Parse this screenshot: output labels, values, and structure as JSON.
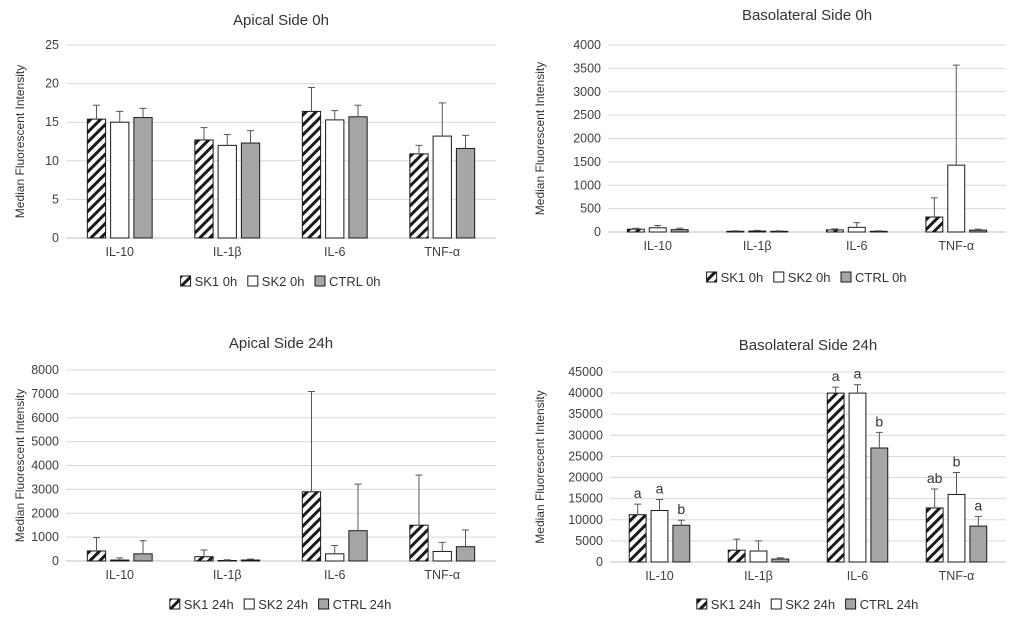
{
  "chart_data": [
    {
      "type": "bar",
      "title": "Apical Side 0h",
      "xlabel": "",
      "ylabel": "Median Fluorescent Intensity",
      "ylim": [
        0,
        25
      ],
      "yticks": [
        0,
        5,
        10,
        15,
        20,
        25
      ],
      "categories": [
        "IL-10",
        "IL-1β",
        "IL-6",
        "TNF-α"
      ],
      "series": [
        {
          "name": "SK1 0h",
          "style": "hatch",
          "values": [
            15.4,
            12.7,
            16.4,
            10.9
          ],
          "errors": [
            1.8,
            1.6,
            3.1,
            1.1
          ]
        },
        {
          "name": "SK2 0h",
          "style": "white",
          "values": [
            15.0,
            12.0,
            15.3,
            13.2
          ],
          "errors": [
            1.4,
            1.4,
            1.2,
            4.3
          ]
        },
        {
          "name": "CTRL 0h",
          "style": "gray",
          "values": [
            15.6,
            12.3,
            15.7,
            11.6
          ],
          "errors": [
            1.2,
            1.6,
            1.5,
            1.7
          ]
        }
      ],
      "labels": null
    },
    {
      "type": "bar",
      "title": "Basolateral  Side 0h",
      "xlabel": "",
      "ylabel": "Median Fluorescent Intensity",
      "ylim": [
        0,
        4000
      ],
      "yticks": [
        0,
        500,
        1000,
        1500,
        2000,
        2500,
        3000,
        3500,
        4000
      ],
      "categories": [
        "IL-10",
        "IL-1β",
        "IL-6",
        "TNF-α"
      ],
      "series": [
        {
          "name": "SK1 0h",
          "style": "hatch",
          "values": [
            60,
            15,
            45,
            320
          ],
          "errors": [
            20,
            10,
            20,
            410
          ]
        },
        {
          "name": "SK2 0h",
          "style": "white",
          "values": [
            90,
            20,
            100,
            1430
          ],
          "errors": [
            50,
            15,
            100,
            2140
          ]
        },
        {
          "name": "CTRL 0h",
          "style": "gray",
          "values": [
            50,
            15,
            15,
            40
          ],
          "errors": [
            30,
            10,
            10,
            20
          ]
        }
      ],
      "labels": null
    },
    {
      "type": "bar",
      "title": "Apical Side 24h",
      "xlabel": "",
      "ylabel": "Median Fluorescent Intensity",
      "ylim": [
        0,
        8000
      ],
      "yticks": [
        0,
        1000,
        2000,
        3000,
        4000,
        5000,
        6000,
        7000,
        8000
      ],
      "categories": [
        "IL-10",
        "IL-1β",
        "IL-6",
        "TNF-α"
      ],
      "series": [
        {
          "name": "SK1 24h",
          "style": "hatch",
          "values": [
            420,
            180,
            2900,
            1500
          ],
          "errors": [
            560,
            280,
            4200,
            2100
          ]
        },
        {
          "name": "SK2 24h",
          "style": "white",
          "values": [
            40,
            20,
            300,
            400
          ],
          "errors": [
            90,
            30,
            350,
            380
          ]
        },
        {
          "name": "CTRL 24h",
          "style": "gray",
          "values": [
            300,
            40,
            1270,
            600
          ],
          "errors": [
            550,
            40,
            1950,
            700
          ]
        }
      ],
      "labels": null
    },
    {
      "type": "bar",
      "title": "Basolateral  Side 24h",
      "xlabel": "",
      "ylabel": "Median Fluorescent Intensity",
      "ylim": [
        0,
        45000
      ],
      "yticks": [
        0,
        5000,
        10000,
        15000,
        20000,
        25000,
        30000,
        35000,
        40000,
        45000
      ],
      "categories": [
        "IL-10",
        "IL-1β",
        "IL-6",
        "TNF-α"
      ],
      "series": [
        {
          "name": "SK1 24h",
          "style": "hatch",
          "values": [
            11200,
            2800,
            40000,
            12800
          ],
          "errors": [
            2500,
            2600,
            1400,
            4500
          ]
        },
        {
          "name": "SK2 24h",
          "style": "white",
          "values": [
            12200,
            2600,
            40000,
            16000
          ],
          "errors": [
            2600,
            2400,
            2000,
            5200
          ]
        },
        {
          "name": "CTRL 24h",
          "style": "gray",
          "values": [
            8700,
            700,
            27000,
            8500
          ],
          "errors": [
            1200,
            300,
            3700,
            2300
          ]
        }
      ],
      "labels": [
        [
          "a",
          "",
          "a",
          "ab"
        ],
        [
          "a",
          "",
          "a",
          "b"
        ],
        [
          "b",
          "",
          "b",
          "a"
        ]
      ]
    }
  ]
}
